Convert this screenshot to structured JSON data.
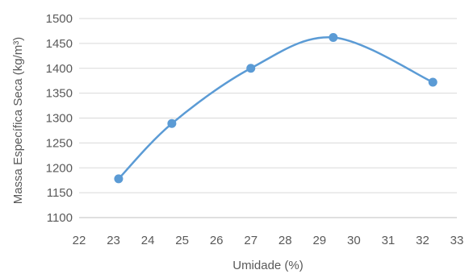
{
  "chart_data": {
    "type": "line",
    "smooth": true,
    "title": "",
    "xlabel": "Umidade (%)",
    "ylabel": "Massa Específica Seca (kg/m³)",
    "xlim": [
      22,
      33
    ],
    "ylim": [
      1100,
      1500
    ],
    "xticks": [
      22,
      23,
      24,
      25,
      26,
      27,
      28,
      29,
      30,
      31,
      32,
      33
    ],
    "yticks": [
      1100,
      1150,
      1200,
      1250,
      1300,
      1350,
      1400,
      1450,
      1500
    ],
    "grid": "horizontal",
    "legend": "none",
    "series": [
      {
        "color": "#5b9bd5",
        "points": [
          {
            "x": 23.15,
            "y": 1178
          },
          {
            "x": 24.7,
            "y": 1289
          },
          {
            "x": 27.0,
            "y": 1400
          },
          {
            "x": 29.4,
            "y": 1462
          },
          {
            "x": 32.3,
            "y": 1372
          }
        ]
      }
    ]
  }
}
